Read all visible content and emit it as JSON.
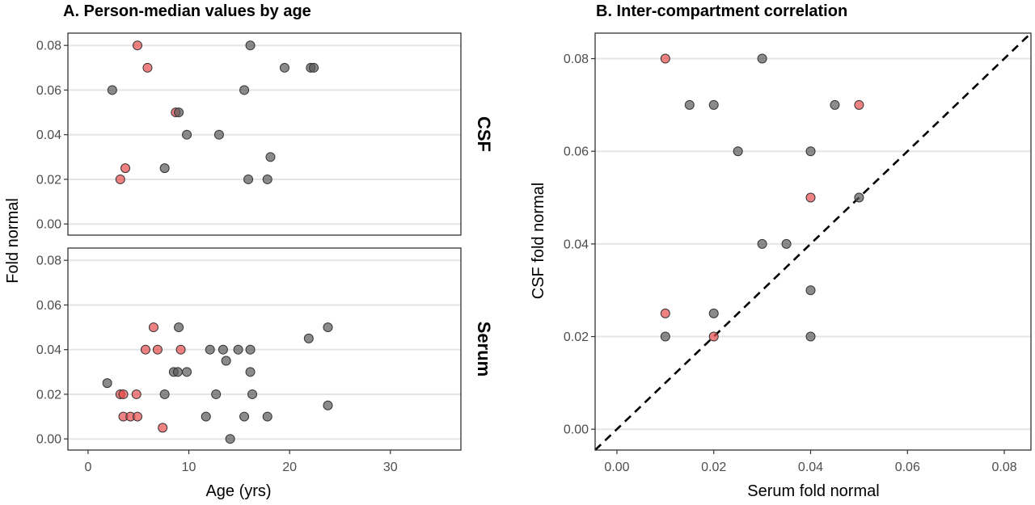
{
  "colors": {
    "grey": "#5a5a5a",
    "red": "#e74c4c"
  },
  "chart_data": [
    {
      "type": "scatter",
      "title": "A. Person-median values by age",
      "xlabel": "Age (yrs)",
      "ylabel": "Fold normal",
      "xlim": [
        -2,
        37
      ],
      "xticks": [
        0,
        10,
        20,
        30
      ],
      "yticks": [
        0,
        0.02,
        0.04,
        0.06,
        0.08
      ],
      "facets": [
        {
          "name": "CSF",
          "ylim": [
            -0.005,
            0.0855
          ],
          "points": [
            {
              "x": 4.9,
              "y": 0.08,
              "group": "red"
            },
            {
              "x": 5.9,
              "y": 0.07,
              "group": "red"
            },
            {
              "x": 8.7,
              "y": 0.05,
              "group": "red"
            },
            {
              "x": 3.7,
              "y": 0.025,
              "group": "red"
            },
            {
              "x": 3.2,
              "y": 0.02,
              "group": "red"
            },
            {
              "x": 2.4,
              "y": 0.06,
              "group": "grey"
            },
            {
              "x": 16.1,
              "y": 0.08,
              "group": "grey"
            },
            {
              "x": 19.5,
              "y": 0.07,
              "group": "grey"
            },
            {
              "x": 22.1,
              "y": 0.07,
              "group": "grey"
            },
            {
              "x": 22.4,
              "y": 0.07,
              "group": "grey"
            },
            {
              "x": 15.5,
              "y": 0.06,
              "group": "grey"
            },
            {
              "x": 9.0,
              "y": 0.05,
              "group": "grey"
            },
            {
              "x": 9.8,
              "y": 0.04,
              "group": "grey"
            },
            {
              "x": 13.0,
              "y": 0.04,
              "group": "grey"
            },
            {
              "x": 18.1,
              "y": 0.03,
              "group": "grey"
            },
            {
              "x": 7.6,
              "y": 0.025,
              "group": "grey"
            },
            {
              "x": 15.9,
              "y": 0.02,
              "group": "grey"
            },
            {
              "x": 17.8,
              "y": 0.02,
              "group": "grey"
            }
          ]
        },
        {
          "name": "Serum",
          "ylim": [
            -0.005,
            0.0855
          ],
          "points": [
            {
              "x": 6.5,
              "y": 0.05,
              "group": "red"
            },
            {
              "x": 5.7,
              "y": 0.04,
              "group": "red"
            },
            {
              "x": 6.9,
              "y": 0.04,
              "group": "red"
            },
            {
              "x": 9.2,
              "y": 0.04,
              "group": "red"
            },
            {
              "x": 3.2,
              "y": 0.02,
              "group": "red"
            },
            {
              "x": 3.5,
              "y": 0.02,
              "group": "red"
            },
            {
              "x": 4.8,
              "y": 0.02,
              "group": "red"
            },
            {
              "x": 3.5,
              "y": 0.01,
              "group": "red"
            },
            {
              "x": 4.2,
              "y": 0.01,
              "group": "red"
            },
            {
              "x": 4.9,
              "y": 0.01,
              "group": "red"
            },
            {
              "x": 7.4,
              "y": 0.005,
              "group": "red"
            },
            {
              "x": 9.0,
              "y": 0.05,
              "group": "grey"
            },
            {
              "x": 23.8,
              "y": 0.05,
              "group": "grey"
            },
            {
              "x": 21.9,
              "y": 0.045,
              "group": "grey"
            },
            {
              "x": 12.1,
              "y": 0.04,
              "group": "grey"
            },
            {
              "x": 13.4,
              "y": 0.04,
              "group": "grey"
            },
            {
              "x": 14.9,
              "y": 0.04,
              "group": "grey"
            },
            {
              "x": 16.1,
              "y": 0.04,
              "group": "grey"
            },
            {
              "x": 13.7,
              "y": 0.035,
              "group": "grey"
            },
            {
              "x": 8.5,
              "y": 0.03,
              "group": "grey"
            },
            {
              "x": 8.9,
              "y": 0.03,
              "group": "grey"
            },
            {
              "x": 9.8,
              "y": 0.03,
              "group": "grey"
            },
            {
              "x": 16.1,
              "y": 0.03,
              "group": "grey"
            },
            {
              "x": 1.9,
              "y": 0.025,
              "group": "grey"
            },
            {
              "x": 7.6,
              "y": 0.02,
              "group": "grey"
            },
            {
              "x": 12.7,
              "y": 0.02,
              "group": "grey"
            },
            {
              "x": 16.3,
              "y": 0.02,
              "group": "grey"
            },
            {
              "x": 23.8,
              "y": 0.015,
              "group": "grey"
            },
            {
              "x": 11.7,
              "y": 0.01,
              "group": "grey"
            },
            {
              "x": 15.5,
              "y": 0.01,
              "group": "grey"
            },
            {
              "x": 17.8,
              "y": 0.01,
              "group": "grey"
            },
            {
              "x": 14.1,
              "y": 0.0,
              "group": "grey"
            }
          ]
        }
      ]
    },
    {
      "type": "scatter",
      "title": "B. Inter-compartment correlation",
      "xlabel": "Serum fold normal",
      "ylabel": "CSF fold normal",
      "xlim": [
        -0.0045,
        0.0855
      ],
      "ylim": [
        -0.0045,
        0.0855
      ],
      "xticks": [
        0,
        0.02,
        0.04,
        0.06,
        0.08
      ],
      "yticks": [
        0,
        0.02,
        0.04,
        0.06,
        0.08
      ],
      "reference_line": "y = x (dashed)",
      "points": [
        {
          "x": 0.01,
          "y": 0.08,
          "group": "red"
        },
        {
          "x": 0.05,
          "y": 0.07,
          "group": "red"
        },
        {
          "x": 0.04,
          "y": 0.05,
          "group": "red"
        },
        {
          "x": 0.01,
          "y": 0.025,
          "group": "red"
        },
        {
          "x": 0.02,
          "y": 0.02,
          "group": "red"
        },
        {
          "x": 0.03,
          "y": 0.08,
          "group": "grey"
        },
        {
          "x": 0.015,
          "y": 0.07,
          "group": "grey"
        },
        {
          "x": 0.02,
          "y": 0.07,
          "group": "grey"
        },
        {
          "x": 0.045,
          "y": 0.07,
          "group": "grey"
        },
        {
          "x": 0.025,
          "y": 0.06,
          "group": "grey"
        },
        {
          "x": 0.04,
          "y": 0.06,
          "group": "grey"
        },
        {
          "x": 0.05,
          "y": 0.05,
          "group": "grey"
        },
        {
          "x": 0.03,
          "y": 0.04,
          "group": "grey"
        },
        {
          "x": 0.035,
          "y": 0.04,
          "group": "grey"
        },
        {
          "x": 0.04,
          "y": 0.03,
          "group": "grey"
        },
        {
          "x": 0.02,
          "y": 0.025,
          "group": "grey"
        },
        {
          "x": 0.01,
          "y": 0.02,
          "group": "grey"
        },
        {
          "x": 0.04,
          "y": 0.02,
          "group": "grey"
        }
      ]
    }
  ]
}
